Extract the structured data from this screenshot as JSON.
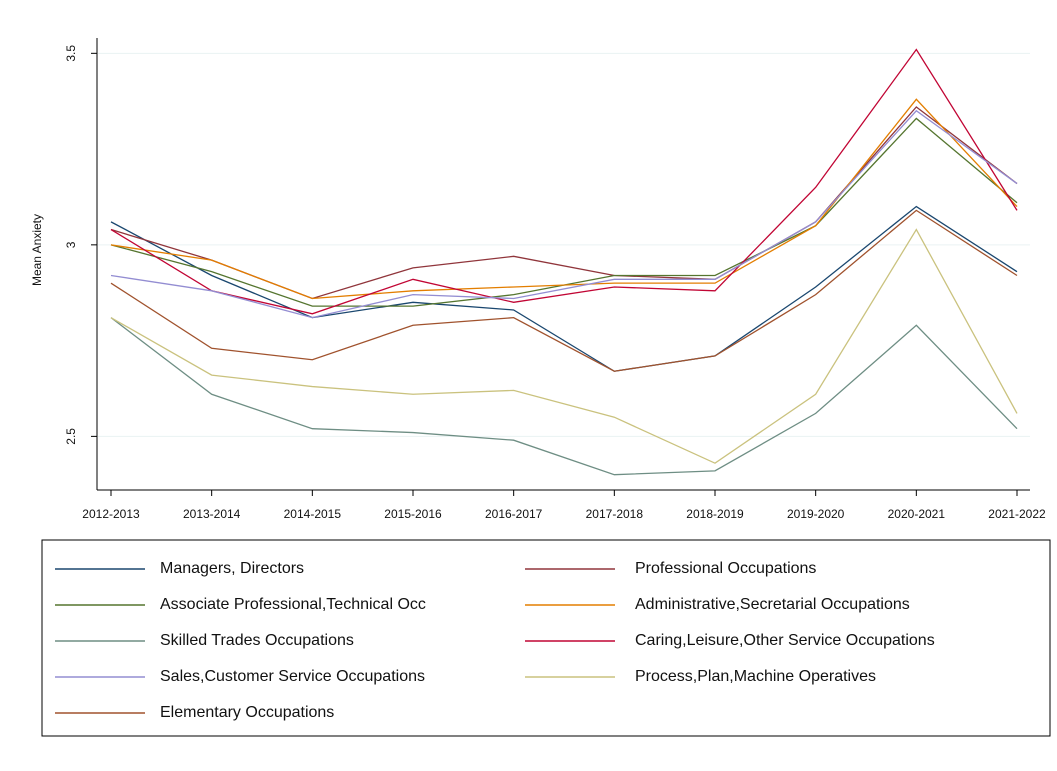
{
  "chart_data": {
    "type": "line",
    "y_label": "Mean Anxiety",
    "categories": [
      "2012-2013",
      "2013-2014",
      "2014-2015",
      "2015-2016",
      "2016-2017",
      "2017-2018",
      "2018-2019",
      "2019-2020",
      "2020-2021",
      "2021-2022"
    ],
    "ylim": [
      2.36,
      3.54
    ],
    "yticks": [
      2.5,
      3,
      3.5
    ],
    "grid": true,
    "series": [
      {
        "name": "Managers, Directors",
        "color": "#1a476f",
        "values": [
          3.06,
          2.92,
          2.81,
          2.85,
          2.83,
          2.67,
          2.71,
          2.89,
          3.1,
          2.93
        ]
      },
      {
        "name": "Professional Occupations",
        "color": "#90353b",
        "values": [
          3.04,
          2.96,
          2.86,
          2.94,
          2.97,
          2.92,
          2.91,
          3.06,
          3.36,
          3.16
        ]
      },
      {
        "name": "Associate Professional,Technical Occ",
        "color": "#55752f",
        "values": [
          3.0,
          2.93,
          2.84,
          2.84,
          2.87,
          2.92,
          2.92,
          3.05,
          3.33,
          3.11
        ]
      },
      {
        "name": "Administrative,Secretarial Occupations",
        "color": "#e37e00",
        "values": [
          3.0,
          2.96,
          2.86,
          2.88,
          2.89,
          2.9,
          2.9,
          3.05,
          3.38,
          3.1
        ]
      },
      {
        "name": "Skilled Trades Occupations",
        "color": "#6e8e84",
        "values": [
          2.81,
          2.61,
          2.52,
          2.51,
          2.49,
          2.4,
          2.41,
          2.56,
          2.79,
          2.52
        ]
      },
      {
        "name": "Caring,Leisure,Other Service Occupations",
        "color": "#c10534",
        "values": [
          3.04,
          2.88,
          2.82,
          2.91,
          2.85,
          2.89,
          2.88,
          3.15,
          3.51,
          3.09
        ]
      },
      {
        "name": "Sales,Customer Service Occupations",
        "color": "#938dd2",
        "values": [
          2.92,
          2.88,
          2.81,
          2.87,
          2.86,
          2.91,
          2.91,
          3.06,
          3.35,
          3.16
        ]
      },
      {
        "name": "Process,Plan,Machine Operatives",
        "color": "#cac27e",
        "values": [
          2.81,
          2.66,
          2.63,
          2.61,
          2.62,
          2.55,
          2.43,
          2.61,
          3.04,
          2.56
        ]
      },
      {
        "name": "Elementary Occupations",
        "color": "#a0522d",
        "values": [
          2.9,
          2.73,
          2.7,
          2.79,
          2.81,
          2.67,
          2.71,
          2.87,
          3.09,
          2.92
        ]
      }
    ]
  }
}
